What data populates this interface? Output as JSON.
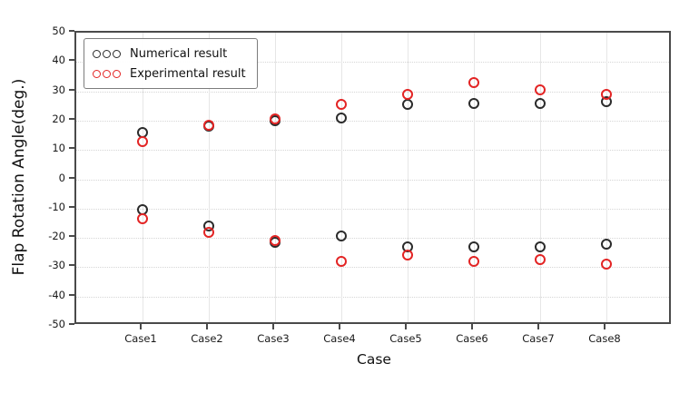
{
  "figure": {
    "background": "#ffffff",
    "axis_color": "#4a4a4a",
    "grid_color": "#e0e0e0"
  },
  "chart_data": {
    "type": "scatter",
    "title": "",
    "xlabel": "Case",
    "ylabel": "Flap Rotation Angle(deg.)",
    "categories": [
      "Case1",
      "Case2",
      "Case3",
      "Case4",
      "Case5",
      "Case6",
      "Case7",
      "Case8"
    ],
    "ylim": [
      -50,
      50
    ],
    "yticks": [
      50,
      40,
      30,
      20,
      10,
      0,
      -10,
      -20,
      -30,
      -40,
      -50
    ],
    "grid": true,
    "legend_position": "upper-left",
    "marker_style": "open-circle",
    "series": [
      {
        "name": "Numerical result",
        "color": "#2b2b2b",
        "values_upper": [
          16,
          18,
          20,
          21,
          25.5,
          26,
          26,
          26.5
        ],
        "values_lower": [
          -10.5,
          -16,
          -21.5,
          -19.5,
          -23,
          -23,
          -23,
          -22
        ]
      },
      {
        "name": "Experimental result",
        "color": "#e32424",
        "values_upper": [
          13,
          18.5,
          20.5,
          25.5,
          29,
          33,
          30.5,
          29
        ],
        "values_lower": [
          -13.5,
          -18,
          -21,
          -28,
          -26,
          -28,
          -27.5,
          -29
        ]
      }
    ]
  }
}
